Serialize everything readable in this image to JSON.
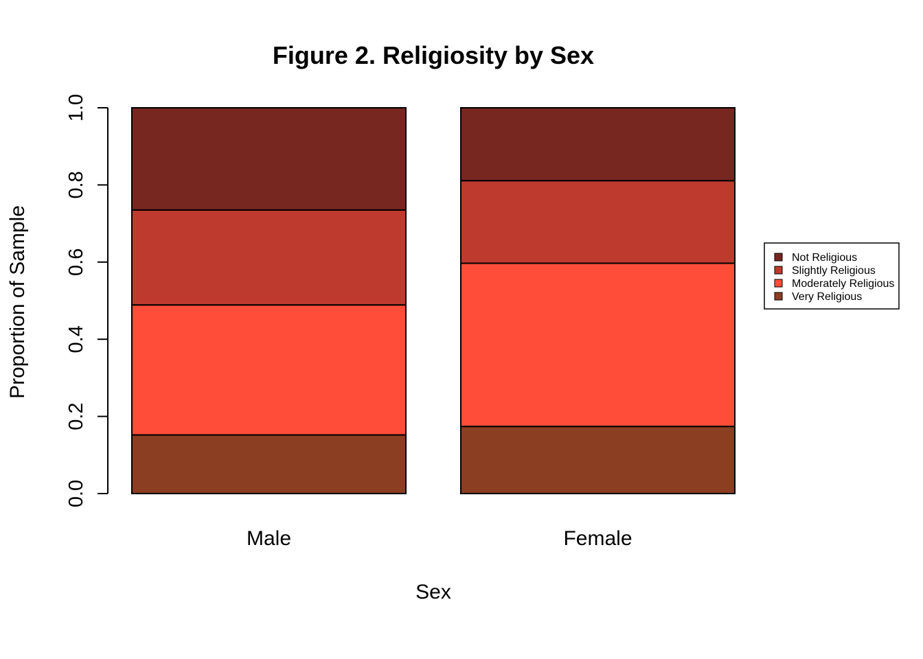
{
  "chart_data": {
    "type": "bar",
    "stacked": true,
    "title": "Figure 2. Religiosity by Sex",
    "xlabel": "Sex",
    "ylabel": "Proportion of Sample",
    "ylim": [
      0,
      1
    ],
    "yticks": [
      "0.0",
      "0.2",
      "0.4",
      "0.6",
      "0.8",
      "1.0"
    ],
    "categories": [
      "Male",
      "Female"
    ],
    "series": [
      {
        "name": "Very Religious",
        "color": "#8B3E22",
        "values": [
          0.152,
          0.174
        ]
      },
      {
        "name": "Moderately Religious",
        "color": "#FF4D3A",
        "values": [
          0.337,
          0.423
        ]
      },
      {
        "name": "Slightly Religious",
        "color": "#BF3A2E",
        "values": [
          0.246,
          0.214
        ]
      },
      {
        "name": "Not Religious",
        "color": "#772620",
        "values": [
          0.265,
          0.189
        ]
      }
    ],
    "legend": {
      "position": "right",
      "order": [
        "Not Religious",
        "Slightly Religious",
        "Moderately Religious",
        "Very Religious"
      ]
    },
    "grid": false
  }
}
